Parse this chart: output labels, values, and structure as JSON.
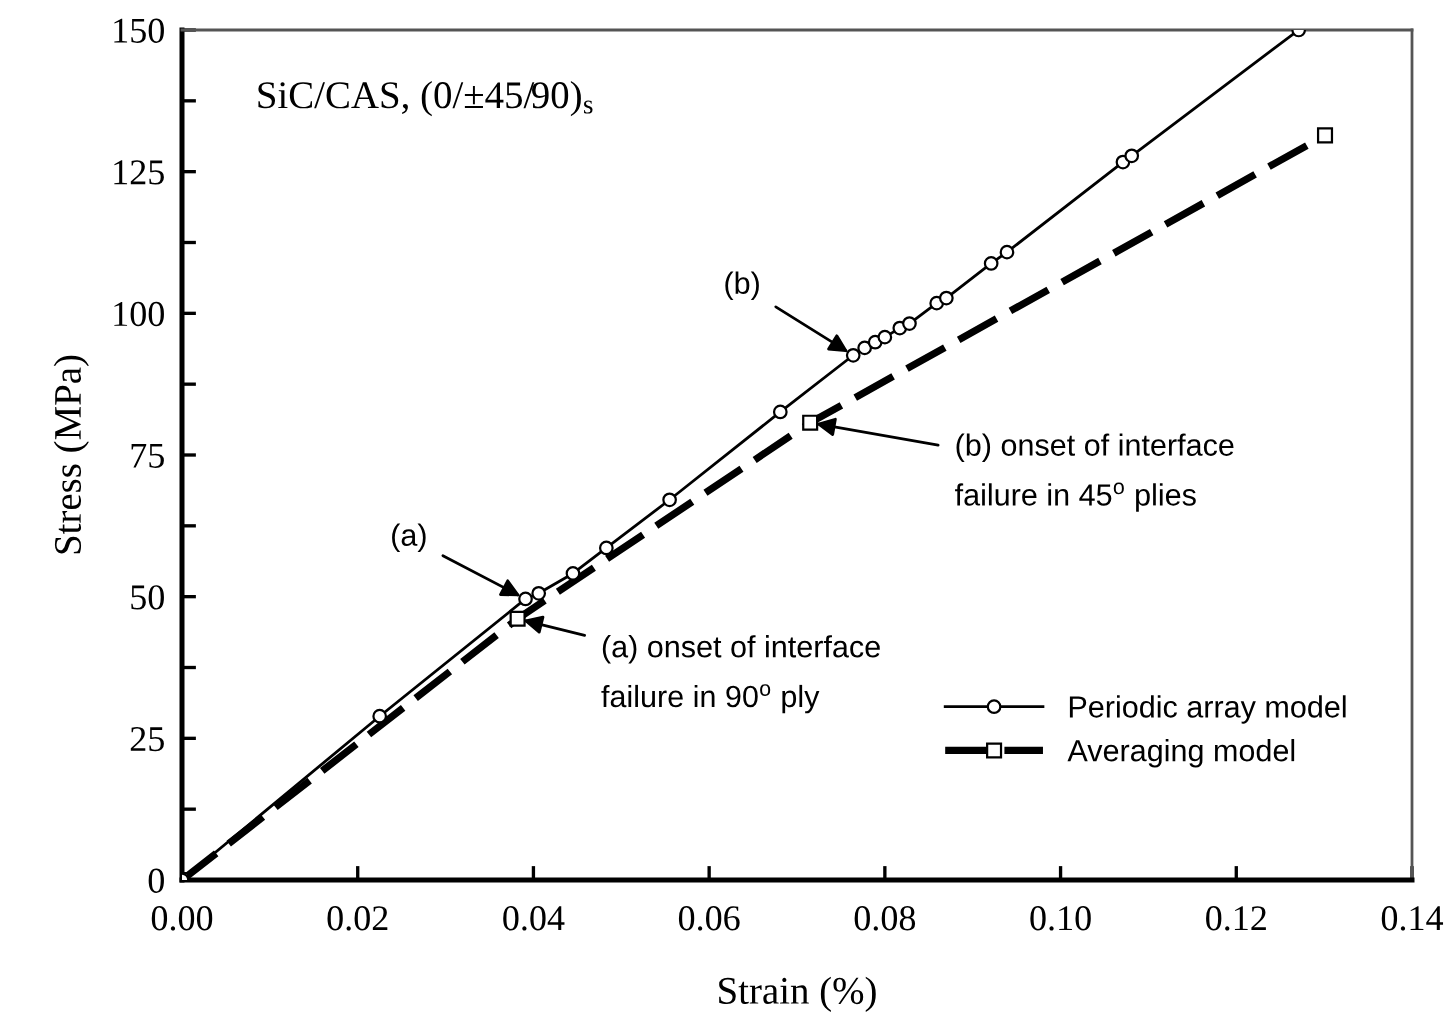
{
  "chart_data": {
    "type": "line",
    "xlabel": "Strain (%)",
    "ylabel": "Stress (MPa)",
    "xlim": [
      0,
      0.14
    ],
    "xticks": [
      {
        "value": 0,
        "label": "0.00"
      },
      0.02,
      0.04,
      0.06,
      0.08,
      {
        "value": 0.1,
        "label": "0.10"
      },
      0.12,
      0.14
    ],
    "ylim": [
      0,
      150
    ],
    "yticks": [
      0,
      {
        "value": 12.5,
        "label": null
      },
      25,
      {
        "value": 37.5,
        "label": null
      },
      50,
      {
        "value": 62.5,
        "label": null
      },
      75,
      {
        "value": 87.5,
        "label": null
      },
      100,
      {
        "value": 112.5,
        "label": null
      },
      125,
      {
        "value": 137.5,
        "label": null
      },
      150
    ],
    "grid": false,
    "legend": "bottom right",
    "series": [
      {
        "name": "Periodic array model",
        "color": "#000000",
        "marker": "circle",
        "line_style": "solid",
        "x": [
          0,
          0.0225,
          0.0391,
          0.0406,
          0.0445,
          0.0483,
          0.0555,
          0.0681,
          0.0764,
          0.0777,
          0.0789,
          0.08,
          0.0817,
          0.0828,
          0.0859,
          0.087,
          0.0921,
          0.0939,
          0.1071,
          0.1081,
          0.1271
        ],
        "values": [
          0,
          28.9,
          49.6,
          50.6,
          54.1,
          58.6,
          67.1,
          82.6,
          92.6,
          93.9,
          94.9,
          95.8,
          97.4,
          98.2,
          101.8,
          102.7,
          108.8,
          110.8,
          126.7,
          127.8,
          150
        ]
      },
      {
        "name": "Averaging model",
        "color": "#000000",
        "marker": "square",
        "line_style": "dashed",
        "x": [
          0,
          0.0382,
          0.0715,
          0.1301
        ],
        "values": [
          0,
          46.1,
          80.7,
          131.4
        ]
      }
    ],
    "annotations": [
      "SiC/CAS, (0/±45/90)$_{s}$",
      {
        "text": "(a)",
        "x": 0.0391,
        "y": 49.6
      },
      {
        "text": "(a) onset of interface\nfailure in 90$^{o}$ ply",
        "x": 0.0382,
        "y": 46.1
      },
      {
        "text": "(b)",
        "x": 0.0764,
        "y": 92.6
      },
      {
        "text": "(b) onset of interface\nfailure in 45$^{o}$ plies",
        "x": 0.0715,
        "y": 80.7
      }
    ]
  }
}
